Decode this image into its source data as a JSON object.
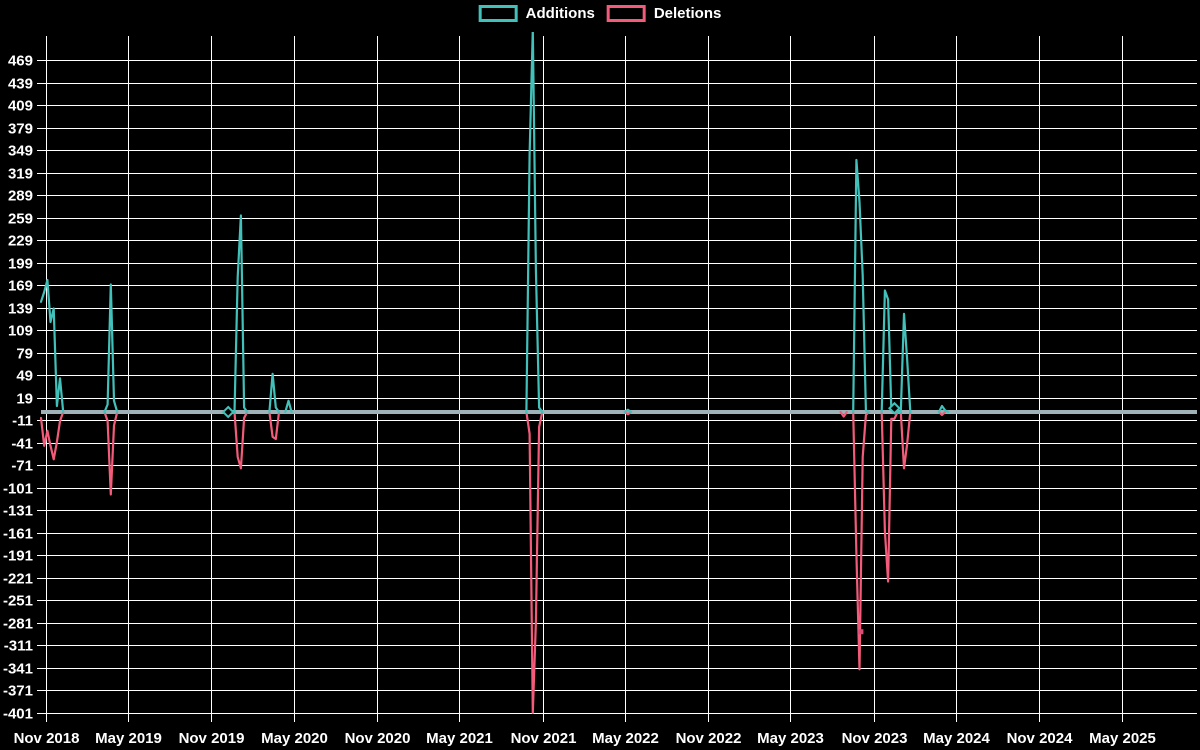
{
  "legend": {
    "additions_label": "Additions",
    "deletions_label": "Deletions"
  },
  "colors": {
    "additions": "#41c1ba",
    "deletions": "#f25c7a",
    "zero_line": "#9fb2b8",
    "grid": "#ffffff",
    "background": "#000000",
    "text": "#ffffff",
    "marker_dark_pink": "#d94f76"
  },
  "chart_data": {
    "type": "line",
    "title": "",
    "legend_position": "top-center",
    "grid": "on",
    "series_names": [
      "Additions",
      "Deletions"
    ],
    "x_axis": {
      "tick_labels": [
        "Nov 2018",
        "May 2019",
        "Nov 2019",
        "May 2020",
        "Nov 2020",
        "May 2021",
        "Nov 2021",
        "May 2022",
        "Nov 2022",
        "May 2023",
        "Nov 2023",
        "May 2024",
        "Nov 2024",
        "May 2025"
      ],
      "tick_dates": [
        "2018-11-01",
        "2019-05-01",
        "2019-11-01",
        "2020-05-01",
        "2020-11-01",
        "2021-05-01",
        "2021-11-01",
        "2022-05-01",
        "2022-11-01",
        "2023-05-01",
        "2023-11-01",
        "2024-05-01",
        "2024-11-01",
        "2025-05-01"
      ],
      "series_start_date": "2018-10-21",
      "series_end_date": "2025-10-12"
    },
    "y_axis": {
      "min": -401,
      "max": 469,
      "step": 30,
      "tick_values": [
        469,
        439,
        409,
        379,
        349,
        319,
        289,
        259,
        229,
        199,
        169,
        139,
        109,
        79,
        49,
        19,
        -11,
        -41,
        -71,
        -101,
        -131,
        -161,
        -191,
        -221,
        -251,
        -281,
        -311,
        -341,
        -371,
        -401
      ]
    },
    "baseline_value": 0,
    "points_format": "date: [additions, deletions]; all other weeks are [0, 0]",
    "points": {
      "2018-10-21": [
        147,
        -8
      ],
      "2018-10-28": [
        160,
        -45
      ],
      "2018-11-04": [
        176,
        -25
      ],
      "2018-11-11": [
        120,
        -45
      ],
      "2018-11-18": [
        138,
        -63
      ],
      "2018-11-25": [
        8,
        -40
      ],
      "2018-12-02": [
        45,
        -12
      ],
      "2019-03-17": [
        10,
        -12
      ],
      "2019-03-24": [
        170,
        -110
      ],
      "2019-03-31": [
        15,
        -18
      ],
      "2019-12-29": [
        180,
        -60
      ],
      "2020-01-05": [
        262,
        -75
      ],
      "2020-01-12": [
        6,
        -8
      ],
      "2020-03-15": [
        51,
        -33
      ],
      "2020-03-22": [
        6,
        -36
      ],
      "2020-04-19": [
        15,
        0
      ],
      "2021-10-03": [
        343,
        -29
      ],
      "2021-10-10": [
        510,
        -401
      ],
      "2021-10-17": [
        190,
        -280
      ],
      "2021-10-24": [
        6,
        -20
      ],
      "2022-05-08": [
        3,
        -3
      ],
      "2023-08-27": [
        0,
        -6
      ],
      "2023-09-24": [
        336,
        -189
      ],
      "2023-10-01": [
        280,
        -343
      ],
      "2023-10-08": [
        182,
        -60
      ],
      "2023-10-15": [
        2,
        -4
      ],
      "2023-11-26": [
        162,
        -159
      ],
      "2023-12-03": [
        150,
        -226
      ],
      "2023-12-10": [
        4,
        -9
      ],
      "2023-12-17": [
        5,
        -9
      ],
      "2024-01-07": [
        131,
        -75
      ],
      "2024-01-14": [
        71,
        -43
      ],
      "2024-03-31": [
        8,
        -4
      ],
      "2024-04-07": [
        2,
        0
      ]
    },
    "clipped_peak": {
      "date": "2021-10-10",
      "series": "Additions",
      "note_value_exceeds_axis_max": true
    },
    "markers": [
      {
        "date": "2019-12-08",
        "series": "additions",
        "value": 0,
        "shape": "diamond"
      },
      {
        "date": "2023-10-04",
        "series": "deletions",
        "value": -293,
        "shape": "square"
      },
      {
        "date": "2023-12-17",
        "series": "additions",
        "value": 5,
        "shape": "diamond"
      }
    ]
  }
}
